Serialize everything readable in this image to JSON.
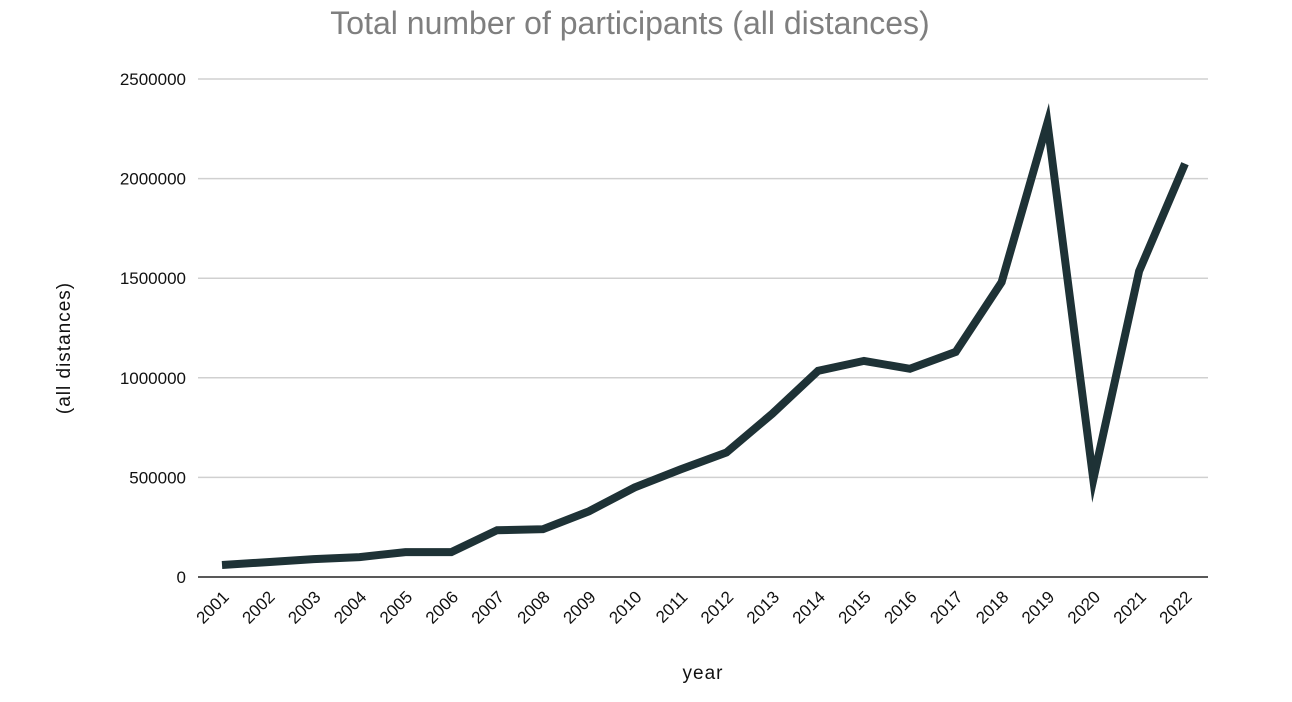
{
  "chart_data": {
    "type": "line",
    "title": "Total number of participants (all distances)",
    "xlabel": "year",
    "ylabel": "(all distances)",
    "x": [
      "2001",
      "2002",
      "2003",
      "2004",
      "2005",
      "2006",
      "2007",
      "2008",
      "2009",
      "2010",
      "2011",
      "2012",
      "2013",
      "2014",
      "2015",
      "2016",
      "2017",
      "2018",
      "2019",
      "2020",
      "2021",
      "2022"
    ],
    "series": [
      {
        "values": [
          60000,
          75000,
          90000,
          100000,
          125000,
          125000,
          235000,
          240000,
          330000,
          450000,
          540000,
          625000,
          820000,
          1035000,
          1085000,
          1045000,
          1130000,
          1480000,
          2280000,
          490000,
          1535000,
          2075000
        ],
        "color": "#1e3236"
      }
    ],
    "ylim": [
      0,
      2500000
    ],
    "yticks": [
      "0",
      "500000",
      "1000000",
      "1500000",
      "2000000",
      "2500000"
    ],
    "grid": true,
    "legend": "none"
  }
}
